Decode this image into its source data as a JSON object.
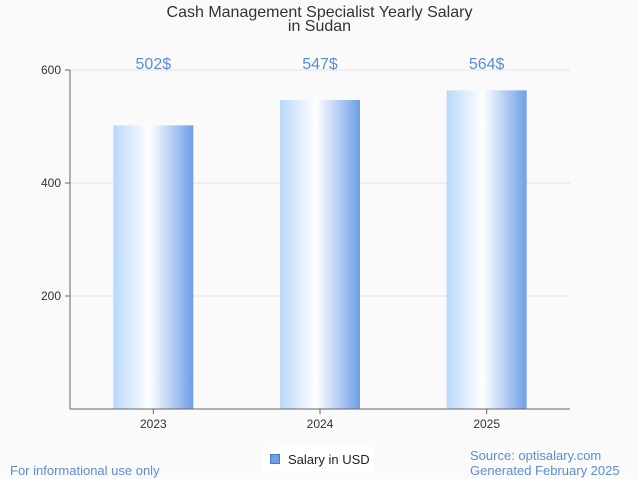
{
  "title_line1": "Cash Management Specialist Yearly Salary",
  "title_line2": "in Sudan",
  "legend_label": "Salary in USD",
  "footer_left": "For informational use only",
  "footer_source": "Source: optisalary.com",
  "footer_generated": "Generated February 2025",
  "colors": {
    "bar_light": "#ffffff",
    "bar_mid": "#b9d8fb",
    "bar_dark": "#6e9fe6",
    "value_label": "#5b8dd6",
    "grid": "#e3e3e3",
    "axis": "#666666"
  },
  "chart_data": {
    "type": "bar",
    "categories": [
      "2023",
      "2024",
      "2025"
    ],
    "values": [
      502,
      547,
      564
    ],
    "value_labels": [
      "502$",
      "547$",
      "564$"
    ],
    "series": [
      {
        "name": "Salary in USD",
        "values": [
          502,
          547,
          564
        ]
      }
    ],
    "ylim": [
      0,
      600
    ],
    "yticks": [
      200,
      400,
      600
    ],
    "grid": true,
    "legend": "bottom-center"
  }
}
